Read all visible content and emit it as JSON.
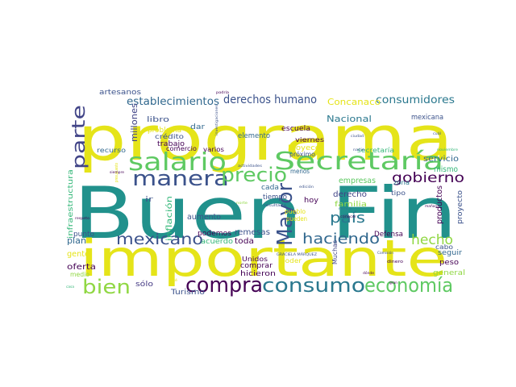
{
  "word_cloud": {
    "words": [
      {
        "text": "Buen Fin",
        "color": "#21918c"
      },
      {
        "text": "programa",
        "color": "#e5e419"
      },
      {
        "text": "importante",
        "color": "#e5e419"
      },
      {
        "text": "Secretaría",
        "color": "#5ec962"
      },
      {
        "text": "salario",
        "color": "#5ec962"
      },
      {
        "text": "manera",
        "color": "#3b528b"
      },
      {
        "text": "precio",
        "color": "#5ec962"
      },
      {
        "text": "parte",
        "color": "#414487"
      },
      {
        "text": "Mayor",
        "color": "#3b528b"
      },
      {
        "text": "compra",
        "color": "#440154"
      },
      {
        "text": "consumo",
        "color": "#2a788e"
      },
      {
        "text": "economía",
        "color": "#5ec962"
      },
      {
        "text": "bien",
        "color": "#90d743"
      },
      {
        "text": "mexicano",
        "color": "#3b528b"
      },
      {
        "text": "gobierno",
        "color": "#440154"
      },
      {
        "text": "haciendo",
        "color": "#31688e"
      },
      {
        "text": "hecho",
        "color": "#90d743"
      },
      {
        "text": "país",
        "color": "#2a788e"
      },
      {
        "text": "derechos humano",
        "color": "#3b528b"
      },
      {
        "text": "consumidores",
        "color": "#2a788e"
      },
      {
        "text": "establecimientos",
        "color": "#31688e"
      },
      {
        "text": "Concanaco",
        "color": "#e5e419"
      },
      {
        "text": "Nacional",
        "color": "#2a788e"
      },
      {
        "text": "millones",
        "color": "#414487"
      },
      {
        "text": "artesanos",
        "color": "#3b528b"
      },
      {
        "text": "infraestructura",
        "color": "#35b779"
      },
      {
        "text": "inflación",
        "color": "#35b779"
      },
      {
        "text": "aumento",
        "color": "#3b528b"
      },
      {
        "text": "remesas",
        "color": "#3b528b"
      },
      {
        "text": "toda",
        "color": "#440154"
      },
      {
        "text": "acuerdo",
        "color": "#35b779"
      },
      {
        "text": "podemos",
        "color": "#440154"
      },
      {
        "text": "plan",
        "color": "#31688e"
      },
      {
        "text": "punto",
        "color": "#3b528b"
      },
      {
        "text": "gente",
        "color": "#e5e419"
      },
      {
        "text": "oferta",
        "color": "#440154"
      },
      {
        "text": "medio",
        "color": "#90d743"
      },
      {
        "text": "sólo",
        "color": "#443983"
      },
      {
        "text": "Turismo",
        "color": "#3b528b"
      },
      {
        "text": "comprar",
        "color": "#440154"
      },
      {
        "text": "hicieron",
        "color": "#440154"
      },
      {
        "text": "Unidos",
        "color": "#440154"
      },
      {
        "text": "poder",
        "color": "#e5e419"
      },
      {
        "text": "Defensa",
        "color": "#440154"
      },
      {
        "text": "familia",
        "color": "#90d743"
      },
      {
        "text": "derecho",
        "color": "#414487"
      },
      {
        "text": "empresas",
        "color": "#5ec962"
      },
      {
        "text": "productos",
        "color": "#440154"
      },
      {
        "text": "proyecto",
        "color": "#3b528b"
      },
      {
        "text": "servicio",
        "color": "#31688e"
      },
      {
        "text": "mismo",
        "color": "#35b779"
      },
      {
        "text": "mexicana",
        "color": "#3b528b"
      },
      {
        "text": "seguir",
        "color": "#31688e"
      },
      {
        "text": "peso",
        "color": "#440154"
      },
      {
        "text": "general",
        "color": "#90d743"
      },
      {
        "text": "cabo",
        "color": "#3b528b"
      },
      {
        "text": "escuela",
        "color": "#440154"
      },
      {
        "text": "elemento",
        "color": "#31688e"
      },
      {
        "text": "viernes",
        "color": "#440154"
      },
      {
        "text": "Proyeco",
        "color": "#e5e419"
      },
      {
        "text": "secretaría",
        "color": "#35b779"
      },
      {
        "text": "tipo",
        "color": "#3b528b"
      },
      {
        "text": "zona",
        "color": "#2a788e"
      },
      {
        "text": "trabajo",
        "color": "#440154"
      },
      {
        "text": "crédito",
        "color": "#3b528b"
      },
      {
        "text": "problema",
        "color": "#e5e419"
      },
      {
        "text": "libro",
        "color": "#3b528b"
      },
      {
        "text": "dar",
        "color": "#31688e"
      },
      {
        "text": "comercio",
        "color": "#440154"
      },
      {
        "text": "varios",
        "color": "#440154"
      },
      {
        "text": "recurso",
        "color": "#31688e"
      },
      {
        "text": "menos",
        "color": "#31688e"
      },
      {
        "text": "cada",
        "color": "#31688e"
      },
      {
        "text": "tiempo",
        "color": "#3b528b"
      },
      {
        "text": "hoy",
        "color": "#440154"
      },
      {
        "text": "pueblo",
        "color": "#e5e419"
      },
      {
        "text": "pueden",
        "color": "#e5e419"
      },
      {
        "text": "próximo",
        "color": "#3b528b"
      },
      {
        "text": "ir",
        "color": "#3b528b"
      },
      {
        "text": "Muchas",
        "color": "#414487"
      },
      {
        "text": "presupuesto",
        "color": "#e5e419"
      },
      {
        "text": "actividades",
        "color": "#3b528b"
      },
      {
        "text": "investigaciones",
        "color": "#3b528b"
      },
      {
        "text": "podría",
        "color": "#440154"
      },
      {
        "text": "ciudad",
        "color": "#3b528b"
      },
      {
        "text": "Comisión",
        "color": "#3b528b"
      },
      {
        "text": "noviembre",
        "color": "#35b779"
      },
      {
        "text": "mañana",
        "color": "#440154"
      },
      {
        "text": "GRACIELA MÁRQUEZ",
        "color": "#3b528b"
      },
      {
        "text": "dinero",
        "color": "#440154"
      },
      {
        "text": "nunca",
        "color": "#2a788e"
      },
      {
        "text": "conocer",
        "color": "#440154"
      },
      {
        "text": "edición",
        "color": "#3b528b"
      },
      {
        "text": "norte",
        "color": "#90d743"
      },
      {
        "text": "siempre",
        "color": "#440154"
      },
      {
        "text": "respeto",
        "color": "#440154"
      },
      {
        "text": "resultado",
        "color": "#3b528b"
      },
      {
        "text": "cuál",
        "color": "#3b528b"
      },
      {
        "text": "nadie",
        "color": "#3b528b"
      },
      {
        "text": "casa",
        "color": "#35b779"
      },
      {
        "text": "José",
        "color": "#e5e419"
      },
      {
        "text": "dónde",
        "color": "#440154"
      },
      {
        "text": "gran",
        "color": "#440154"
      }
    ]
  }
}
